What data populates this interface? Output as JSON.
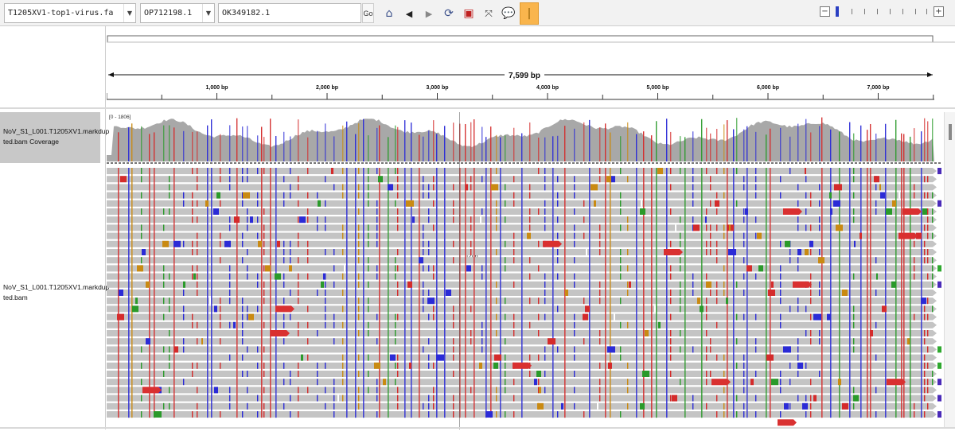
{
  "toolbar": {
    "genome": "T1205XV1-top1-virus.fa",
    "chromosome": "OP712198.1",
    "locus": "OK349182.1",
    "go_label": "Go",
    "buttons": [
      "home-icon",
      "back-icon",
      "forward-icon",
      "refresh-icon",
      "roi-icon",
      "fit-icon",
      "popup-icon",
      "ruler-toggle-icon"
    ],
    "zoom_minus": "−",
    "zoom_plus": "+"
  },
  "ruler": {
    "span_label": "7,599 bp",
    "ticks": [
      "1,000 bp",
      "2,000 bp",
      "3,000 bp",
      "4,000 bp",
      "5,000 bp",
      "6,000 bp",
      "7,000 bp"
    ]
  },
  "tracks": {
    "coverage_label": "NoV_S1_L001.T1205XV1.markdup ted.bam Coverage",
    "coverage_range": "[0 - 1806]",
    "alignment_label": "NoV_S1_L001.T1205XV1.markdup ted.bam",
    "insertion_tag": "1206"
  },
  "colors": {
    "read": "#c4c4c4",
    "coverage": "#a8a8a8",
    "A": "#2a9a2a",
    "C": "#2b2bd6",
    "G": "#c98a12",
    "T": "#d42b2b",
    "accent": "#f9b54d"
  }
}
